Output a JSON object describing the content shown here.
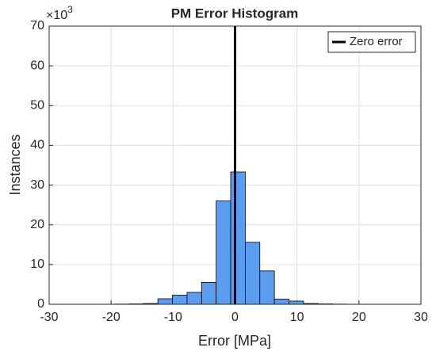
{
  "chart_data": {
    "type": "histogram",
    "title": "PM Error Histogram",
    "x_label": "Error [MPa]",
    "y_label": "Instances",
    "y_multiplier_base": "×10",
    "y_multiplier_exponent": "3",
    "bins": [
      -28.9,
      -26.55,
      -24.2,
      -21.85,
      -19.5,
      -17.15,
      -14.8,
      -12.45,
      -10.1,
      -7.75,
      -5.4,
      -3.05,
      -0.7,
      1.65,
      4.0,
      6.35,
      8.7,
      11.05,
      13.4,
      15.75,
      18.1,
      20.45,
      22.8,
      25.15,
      27.5,
      29.85
    ],
    "values": [
      0,
      0,
      0,
      0,
      0.05,
      0.1,
      0.2,
      1.4,
      2.3,
      3.0,
      5.5,
      26.0,
      33.3,
      15.6,
      8.4,
      1.3,
      0.8,
      0.2,
      0.1,
      0.05,
      0,
      0,
      0,
      0,
      0
    ],
    "color": "#5b9ef0",
    "reference_line": {
      "x": 0,
      "name": "Zero error",
      "color": "#000000"
    },
    "xlim": [
      -30,
      30
    ],
    "xticks": [
      -30,
      -20,
      -10,
      0,
      10,
      20,
      30
    ],
    "ylim": [
      0,
      70
    ],
    "yticks": [
      0,
      10,
      20,
      30,
      40,
      50,
      60,
      70
    ],
    "grid": true,
    "legend_position": "top-right"
  }
}
